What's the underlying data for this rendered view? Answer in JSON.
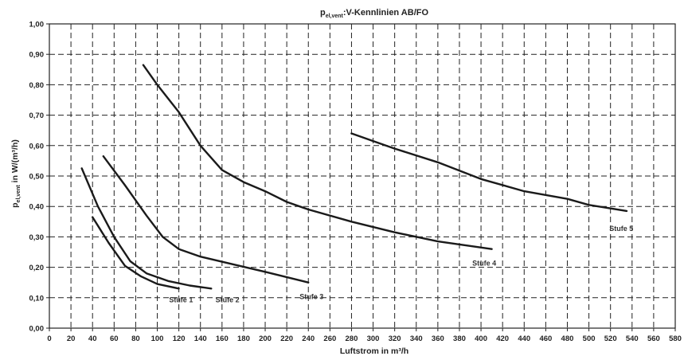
{
  "chart_data": {
    "type": "line",
    "title": "p_el,vent : V-Kennlinien AB/FO",
    "title_main": "p",
    "title_sub": "el,vent",
    "title_rest": ":V-Kennlinien AB/FO",
    "xlabel": "Luftstrom in m³/h",
    "ylabel": "p_el,vent in W/(m³/h)",
    "ylabel_main": "p",
    "ylabel_sub": "el,vent",
    "ylabel_rest": " in W/(m³/h)",
    "xlim": [
      0,
      580
    ],
    "ylim": [
      0,
      1.0
    ],
    "x_ticks": [
      0,
      20,
      40,
      60,
      80,
      100,
      120,
      140,
      160,
      180,
      200,
      220,
      240,
      260,
      280,
      300,
      320,
      340,
      360,
      380,
      400,
      420,
      440,
      460,
      480,
      500,
      520,
      540,
      560,
      580
    ],
    "x_tick_labels": [
      "0",
      "20",
      "40",
      "60",
      "80",
      "100",
      "120",
      "140",
      "160",
      "180",
      "200",
      "220",
      "240",
      "260",
      "280",
      "300",
      "320",
      "340",
      "360",
      "380",
      "400",
      "420",
      "440",
      "460",
      "480",
      "500",
      "520",
      "540",
      "560",
      "580"
    ],
    "y_ticks": [
      0,
      0.1,
      0.2,
      0.3,
      0.4,
      0.5,
      0.6,
      0.7,
      0.8,
      0.9,
      1.0
    ],
    "y_tick_labels": [
      "0,00",
      "0,10",
      "0,20",
      "0,30",
      "0,40",
      "0,50",
      "0,60",
      "0,70",
      "0,80",
      "0,90",
      "1,00"
    ],
    "grid": true,
    "series": [
      {
        "name": "Stufe 1",
        "x": [
          40,
          55,
          70,
          85,
          100,
          120
        ],
        "y": [
          0.365,
          0.28,
          0.205,
          0.17,
          0.145,
          0.13
        ],
        "label_at": [
          122,
          0.085
        ]
      },
      {
        "name": "Stufe 2",
        "x": [
          30,
          45,
          60,
          75,
          90,
          110,
          130,
          150
        ],
        "y": [
          0.525,
          0.4,
          0.3,
          0.22,
          0.18,
          0.155,
          0.14,
          0.13
        ],
        "label_at": [
          165,
          0.085
        ]
      },
      {
        "name": "Stufe 3",
        "x": [
          50,
          70,
          90,
          105,
          120,
          140,
          170,
          200,
          240
        ],
        "y": [
          0.565,
          0.47,
          0.37,
          0.3,
          0.26,
          0.235,
          0.21,
          0.185,
          0.15
        ],
        "label_at": [
          243,
          0.095
        ]
      },
      {
        "name": "Stufe 4",
        "x": [
          87,
          100,
          120,
          140,
          160,
          180,
          200,
          220,
          240,
          280,
          320,
          360,
          410
        ],
        "y": [
          0.865,
          0.8,
          0.71,
          0.6,
          0.52,
          0.48,
          0.45,
          0.415,
          0.39,
          0.35,
          0.315,
          0.285,
          0.26
        ],
        "label_at": [
          403,
          0.205
        ]
      },
      {
        "name": "Stufe 5",
        "x": [
          280,
          300,
          320,
          360,
          400,
          440,
          480,
          500,
          535
        ],
        "y": [
          0.64,
          0.615,
          0.59,
          0.545,
          0.49,
          0.45,
          0.425,
          0.405,
          0.385
        ],
        "label_at": [
          530,
          0.32
        ]
      }
    ]
  }
}
